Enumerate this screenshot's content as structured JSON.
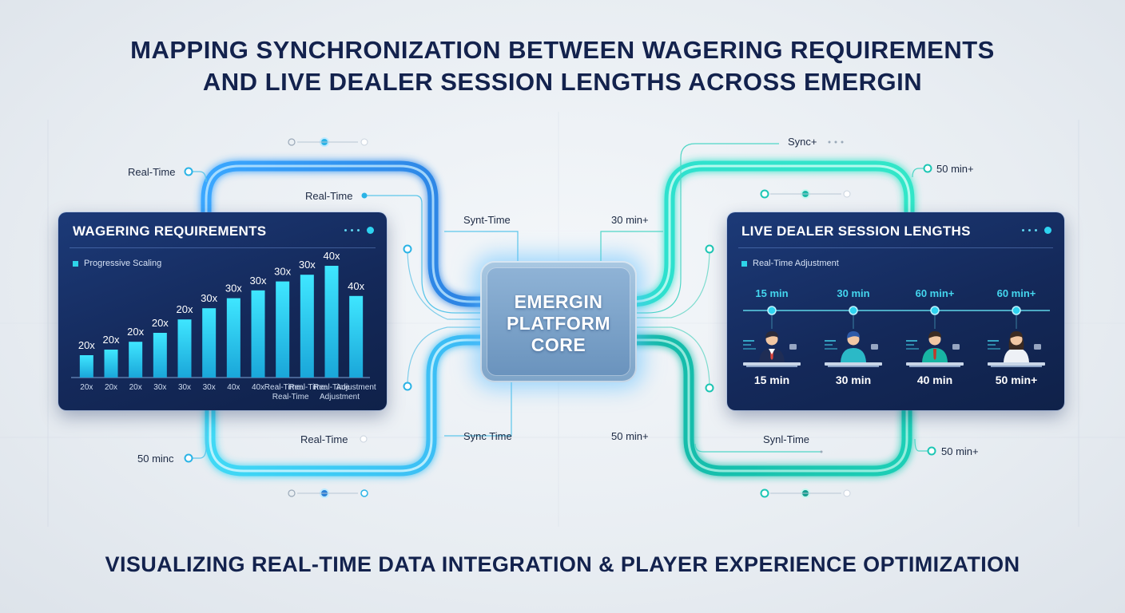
{
  "title": {
    "line1": "MAPPING SYNCHRONIZATION BETWEEN WAGERING REQUIREMENTS",
    "line2": "AND LIVE DEALER SESSION LENGTHS ACROSS EMERGIN"
  },
  "subtitle": "VISUALIZING REAL-TIME DATA INTEGRATION & PLAYER EXPERIENCE OPTIMIZATION",
  "core": {
    "line1": "EMERGIN",
    "line2": "PLATFORM",
    "line3": "CORE"
  },
  "connector_labels": {
    "left_top_outer": "Real-Time",
    "left_top_inner": "Real-Time",
    "top_center": "Synt-Time",
    "right_top_inner": "30 min+",
    "right_top_sync": "Sync+",
    "right_top_outer": "50 min+",
    "left_bottom_inner": "Real-Time",
    "left_bottom_outer": "50 minc",
    "bottom_center": "Sync Time",
    "right_bottom_inner": "50 min+",
    "right_bottom_sync": "Synl-Time",
    "right_bottom_outer": "50 min+"
  },
  "left_panel": {
    "title": "WAGERING REQUIREMENTS",
    "legend": "Progressive Scaling",
    "chart_data": {
      "type": "bar",
      "top_labels": [
        "20x",
        "20x",
        "20x",
        "20x",
        "20x",
        "30x",
        "30x",
        "30x",
        "30x",
        "30x",
        "40x",
        "40x"
      ],
      "values": [
        20,
        25,
        32,
        40,
        52,
        62,
        71,
        78,
        86,
        92,
        100,
        73
      ],
      "x_labels": [
        "20x",
        "20x",
        "20x",
        "30x",
        "30x",
        "30x",
        "40x",
        "40x",
        "Real-Time",
        "Real-Time",
        "Real-Time",
        "Adjustment"
      ],
      "x_labels_row2": [
        "",
        "",
        "",
        "",
        "",
        "",
        "",
        "",
        "Real-Time",
        "",
        "Adjustment",
        ""
      ]
    }
  },
  "right_panel": {
    "title": "LIVE DEALER SESSION LENGTHS",
    "legend": "Real-Time Adjustment",
    "timeline": [
      "15 min",
      "30 min",
      "60 min+",
      "60 min+"
    ],
    "dealers": [
      {
        "label": "15 min",
        "icon": "dealer-man-suit-icon"
      },
      {
        "label": "30 min",
        "icon": "dealer-man-teal-icon"
      },
      {
        "label": "40 min",
        "icon": "dealer-man-vest-icon"
      },
      {
        "label": "50 min+",
        "icon": "dealer-woman-icon"
      }
    ]
  },
  "colors": {
    "navy": "#13224d",
    "panel": "#1c3a78",
    "cyan": "#2ed3f0",
    "blue": "#2f8ef0",
    "teal": "#22d6c2"
  }
}
